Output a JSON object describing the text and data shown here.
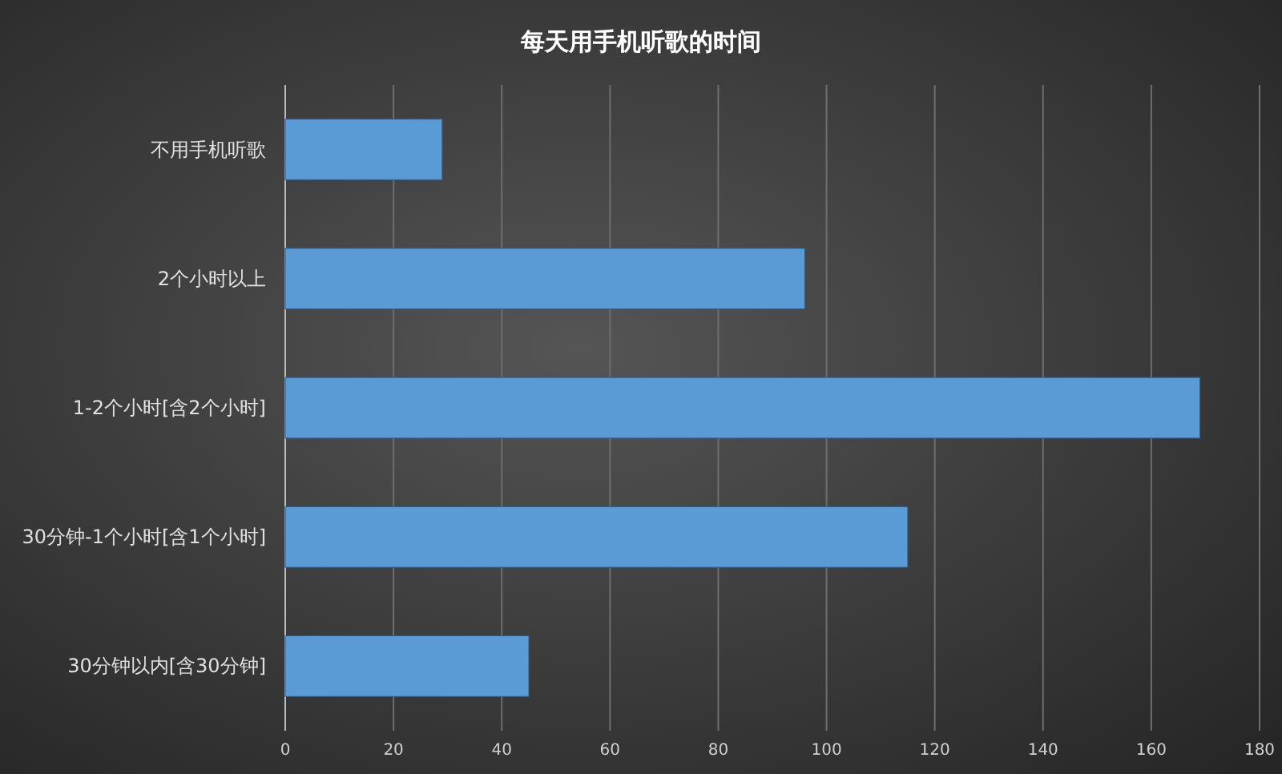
{
  "chart_data": {
    "type": "bar",
    "orientation": "horizontal",
    "title": "每天用手机听歌的时间",
    "categories": [
      "不用手机听歌",
      "2个小时以上",
      "1-2个小时[含2个小时]",
      "30分钟-1个小时[含1个小时]",
      "30分钟以内[含30分钟]"
    ],
    "values": [
      29,
      96,
      169,
      115,
      45
    ],
    "color": "#5b9bd5",
    "xlim": [
      0,
      180
    ],
    "xticks": [
      0,
      20,
      40,
      60,
      80,
      100,
      120,
      140,
      160,
      180
    ],
    "grid": "x"
  }
}
